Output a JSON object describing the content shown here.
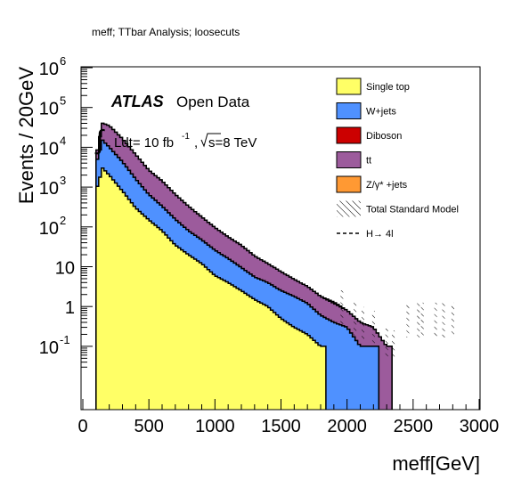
{
  "canvas_title": "meff; TTbar Analysis; loosecuts",
  "atlas": {
    "brand": "ATLAS",
    "label": "Open Data"
  },
  "luminosity": {
    "text": "Ldt= 10 fb",
    "exponent": "-1",
    "energy": "s=8 TeV"
  },
  "legend_title": "",
  "chart_data": {
    "type": "area",
    "title": "meff; TTbar Analysis; loosecuts",
    "xlabel": "meff[GeV]",
    "ylabel": "Events / 20GeV",
    "xlim": [
      0,
      3000
    ],
    "ylim": [
      0.03,
      1000000
    ],
    "yscale": "log",
    "stacked": true,
    "bin_width": 20,
    "x_ticks": [
      0,
      500,
      1000,
      1500,
      2000,
      2500,
      3000
    ],
    "x_tick_labels": [
      "0",
      "500",
      "1000",
      "1500",
      "2000",
      "2500",
      "3000"
    ],
    "y_tick_labels": [
      {
        "value": 0.1,
        "base": "10",
        "exp": "-1"
      },
      {
        "value": 1,
        "base": "1",
        "exp": ""
      },
      {
        "value": 10,
        "base": "10",
        "exp": ""
      },
      {
        "value": 100,
        "base": "10",
        "exp": "2"
      },
      {
        "value": 1000,
        "base": "10",
        "exp": "3"
      },
      {
        "value": 10000,
        "base": "10",
        "exp": "4"
      },
      {
        "value": 100000,
        "base": "10",
        "exp": "5"
      },
      {
        "value": 1000000,
        "base": "10",
        "exp": "6"
      }
    ],
    "x": [
      100,
      150,
      200,
      300,
      400,
      500,
      600,
      700,
      800,
      900,
      1000,
      1100,
      1200,
      1300,
      1400,
      1500,
      1600,
      1700,
      1800,
      1900,
      2000,
      2100,
      2200,
      2300,
      2400
    ],
    "series": [
      {
        "name": "Single top",
        "color": "#ffff66",
        "values": [
          800,
          3000,
          2000,
          800,
          300,
          150,
          80,
          35,
          20,
          12,
          6,
          4,
          2.5,
          1.5,
          1,
          0.5,
          0.3,
          0.2,
          0.1,
          0,
          0,
          0,
          0,
          0,
          0
        ]
      },
      {
        "name": "W+jets",
        "color": "#4f91ff",
        "values": [
          3000,
          12000,
          8000,
          3500,
          1300,
          500,
          250,
          120,
          60,
          35,
          20,
          12,
          7,
          4,
          3,
          2,
          1.5,
          1,
          0.5,
          0.4,
          0.3,
          0.1,
          0.1,
          0,
          0
        ]
      },
      {
        "name": "Diboson",
        "color": "#cc0000",
        "values": [
          0,
          0,
          0,
          0,
          0,
          0,
          0,
          0,
          0,
          0,
          0,
          0,
          0,
          0,
          0,
          0,
          0,
          0,
          0,
          0,
          0,
          0,
          0,
          0,
          0
        ]
      },
      {
        "name": "tt",
        "color": "#9c5b9c",
        "values": [
          2000,
          25000,
          25000,
          12000,
          5000,
          2000,
          1100,
          500,
          250,
          130,
          70,
          40,
          25,
          13,
          8,
          5,
          3,
          2,
          1.2,
          0.8,
          0.5,
          0.3,
          0.2,
          0.1,
          0
        ]
      },
      {
        "name": "Z/γ* +jets",
        "color": "#ff9933",
        "values": [
          0,
          0,
          0,
          0,
          0,
          0,
          0,
          0,
          0,
          0,
          0,
          0,
          0,
          0,
          0,
          0,
          0,
          0,
          0,
          0.1,
          0,
          0,
          0,
          0,
          0
        ]
      }
    ],
    "legend": [
      {
        "label": "Single top",
        "kind": "box",
        "color": "#ffff66"
      },
      {
        "label": "W+jets",
        "kind": "box",
        "color": "#4f91ff"
      },
      {
        "label": "Diboson",
        "kind": "box",
        "color": "#cc0000"
      },
      {
        "label": "tt",
        "kind": "box",
        "color": "#9c5b9c"
      },
      {
        "label": "Z/γ* +jets",
        "kind": "box",
        "color": "#ff9933"
      },
      {
        "label": "Total Standard Model",
        "kind": "hatch",
        "color": "#000000"
      },
      {
        "label": "H→ 4l",
        "kind": "dashed",
        "color": "#000000"
      }
    ],
    "legend_position": "top-right",
    "grid": false
  }
}
